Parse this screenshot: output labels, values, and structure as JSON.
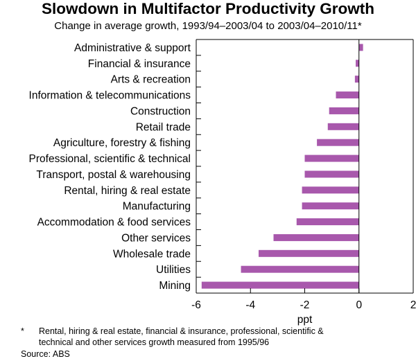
{
  "chart_data": {
    "type": "bar",
    "orientation": "horizontal",
    "title": "Slowdown in Multifactor Productivity Growth",
    "subtitle": "Change in average growth, 1993/94–2003/04 to 2003/04–2010/11*",
    "xlabel": "ppt",
    "xlim": [
      -6,
      2
    ],
    "xticks": [
      -6,
      -4,
      -2,
      0,
      2
    ],
    "xtick_labels": [
      "-6",
      "-4",
      "-2",
      "0",
      "2"
    ],
    "bar_color": "#a858ac",
    "categories": [
      "Administrative & support",
      "Financial & insurance",
      "Arts & recreation",
      "Information & telecommunications",
      "Construction",
      "Retail trade",
      "Agriculture, forestry & fishing",
      "Professional, scientific & technical",
      "Transport, postal & warehousing",
      "Rental, hiring & real estate",
      "Manufacturing",
      "Accommodation & food services",
      "Other services",
      "Wholesale trade",
      "Utilities",
      "Mining"
    ],
    "values": [
      0.15,
      -0.12,
      -0.15,
      -0.85,
      -1.1,
      -1.15,
      -1.55,
      -2.0,
      -2.0,
      -2.1,
      -2.1,
      -2.3,
      -3.15,
      -3.7,
      -4.35,
      -5.8
    ]
  },
  "footnote": {
    "marker": "*",
    "lines": [
      "Rental, hiring & real estate, financial & insurance, professional, scientific &",
      "technical and other services growth measured from 1995/96"
    ]
  },
  "source": "Source: ABS"
}
